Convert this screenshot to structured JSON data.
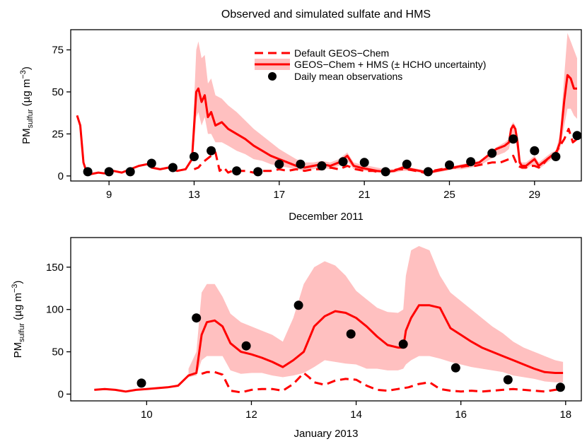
{
  "chart_data": [
    {
      "type": "line",
      "title": "Observed and simulated sulfate and HMS",
      "xlabel": "December 2011",
      "ylabel_main": "PM",
      "ylabel_sub": "sulfur",
      "ylabel_unit_pre": " (µg m",
      "ylabel_unit_sup": "−3",
      "ylabel_unit_post": ")",
      "xlim": [
        7.2,
        31.2
      ],
      "ylim": [
        -3,
        87
      ],
      "xticks": [
        {
          "v": 9,
          "label": "9"
        },
        {
          "v": 13,
          "label": "13"
        },
        {
          "v": 17,
          "label": "17"
        },
        {
          "v": 21,
          "label": "21"
        },
        {
          "v": 25,
          "label": "25"
        },
        {
          "v": 29,
          "label": "29"
        }
      ],
      "yticks": [
        {
          "v": 0,
          "label": "0"
        },
        {
          "v": 25,
          "label": "25"
        },
        {
          "v": 50,
          "label": "50"
        },
        {
          "v": 75,
          "label": "75"
        }
      ],
      "legend": {
        "position": "top-center",
        "entries": [
          "Default GEOS−Chem",
          "GEOS−Chem + HMS (± HCHO uncertainty)",
          "Daily mean observations"
        ]
      },
      "colors": {
        "model": "#ff0000",
        "band": "#ffc0c0",
        "obs": "#000000"
      },
      "series": [
        {
          "name": "GEOS−Chem + HMS (± HCHO uncertainty)",
          "style": "solid",
          "x": [
            7.5,
            7.65,
            7.8,
            7.95,
            8.1,
            8.5,
            8.8,
            9.2,
            9.6,
            10.0,
            10.4,
            10.8,
            11.0,
            11.4,
            11.8,
            12.2,
            12.6,
            12.9,
            13.0,
            13.1,
            13.2,
            13.35,
            13.5,
            13.65,
            13.8,
            14.0,
            14.3,
            14.6,
            15.0,
            15.4,
            15.8,
            16.2,
            16.6,
            17.0,
            17.4,
            17.8,
            18.2,
            18.6,
            19.0,
            19.4,
            19.8,
            20.0,
            20.2,
            20.5,
            20.8,
            21.2,
            21.6,
            22.0,
            22.4,
            22.8,
            23.2,
            23.6,
            24.0,
            24.4,
            24.8,
            25.2,
            25.6,
            26.0,
            26.4,
            26.8,
            27.2,
            27.6,
            27.8,
            27.9,
            28.0,
            28.1,
            28.2,
            28.3,
            28.4,
            28.6,
            28.8,
            29.0,
            29.2,
            29.4,
            29.6,
            29.8,
            30.0,
            30.2,
            30.4,
            30.55,
            30.7,
            30.85,
            31.0
          ],
          "y": [
            36,
            30,
            8,
            2,
            1,
            2,
            1.5,
            3,
            2,
            4,
            6,
            7,
            5,
            4,
            5,
            3,
            4,
            10,
            30,
            50,
            52,
            44,
            48,
            35,
            38,
            30,
            32,
            28,
            25,
            22,
            18,
            15,
            12,
            10,
            8,
            6,
            5,
            6,
            7,
            6,
            8,
            10,
            12,
            6,
            5,
            4,
            3,
            2.5,
            3,
            5,
            4,
            3,
            2,
            3,
            4,
            5,
            6,
            7,
            8,
            12,
            16,
            18,
            20,
            28,
            30,
            28,
            20,
            8,
            6,
            6,
            8,
            10,
            6,
            8,
            10,
            12,
            13,
            20,
            45,
            60,
            58,
            52,
            52
          ]
        },
        {
          "name": "Default GEOS−Chem",
          "style": "dashed",
          "x": [
            13.0,
            13.2,
            13.4,
            13.6,
            13.8,
            14.0,
            14.2,
            14.4,
            14.6,
            14.8,
            15.0,
            15.4,
            15.8,
            16.2,
            16.6,
            17.0,
            17.4,
            17.8,
            18.2,
            18.6,
            19.0,
            19.4,
            19.8,
            20.2,
            20.6,
            21.0,
            21.4,
            21.8,
            22.2,
            22.6,
            23.0,
            23.4,
            23.8,
            24.2,
            24.6,
            25.0,
            25.4,
            25.8,
            26.2,
            26.6,
            27.0,
            27.4,
            27.8,
            28.0,
            28.2,
            28.4,
            28.6,
            28.8,
            29.0,
            29.2,
            29.4,
            29.6,
            29.8,
            30.0,
            30.2,
            30.4,
            30.6,
            30.8,
            31.0
          ],
          "y": [
            4,
            5,
            8,
            10,
            12,
            14,
            3,
            5,
            2,
            3,
            3,
            3,
            2,
            3,
            3,
            4,
            3,
            4,
            3,
            4,
            4,
            5,
            4,
            6,
            4,
            3,
            3,
            2,
            3,
            4,
            4,
            3,
            2,
            3,
            4,
            5,
            5,
            6,
            6,
            7,
            8,
            8,
            10,
            12,
            6,
            5,
            5,
            6,
            6,
            5,
            7,
            10,
            12,
            14,
            18,
            22,
            28,
            20,
            22
          ]
        }
      ],
      "band": {
        "x": [
          12.9,
          13.0,
          13.1,
          13.2,
          13.35,
          13.5,
          13.65,
          13.8,
          14.0,
          14.3,
          14.6,
          15.0,
          15.4,
          15.8,
          16.2,
          16.6,
          17.0,
          17.4,
          17.8,
          18.2,
          18.6,
          19.0,
          19.4,
          19.8,
          20.0,
          20.2,
          20.5,
          20.8,
          21.2,
          21.6,
          22.0,
          22.4,
          22.8,
          23.2,
          23.6,
          24.0,
          24.4,
          24.8,
          25.2,
          25.6,
          26.0,
          26.4,
          26.8,
          27.2,
          27.6,
          27.8,
          27.9,
          28.0,
          28.1,
          28.2,
          28.3,
          28.4,
          28.6,
          28.8,
          29.0,
          29.2,
          29.4,
          29.6,
          29.8,
          30.0,
          30.2,
          30.4,
          30.55,
          30.7,
          30.85,
          31.0
        ],
        "upper": [
          12,
          45,
          75,
          80,
          70,
          72,
          55,
          58,
          48,
          46,
          42,
          38,
          33,
          28,
          24,
          20,
          16,
          13,
          10,
          8,
          8,
          9,
          8,
          10,
          12,
          14,
          8,
          7,
          6,
          5,
          4,
          4,
          6,
          5,
          4,
          3,
          4,
          5,
          6,
          7,
          8,
          9,
          13,
          17,
          20,
          22,
          30,
          32,
          30,
          22,
          10,
          8,
          8,
          10,
          12,
          8,
          10,
          12,
          14,
          15,
          25,
          60,
          85,
          80,
          75,
          70
        ],
        "lower": [
          8,
          20,
          35,
          38,
          30,
          35,
          25,
          25,
          20,
          20,
          18,
          15,
          13,
          10,
          9,
          7,
          6,
          5,
          4,
          3,
          4,
          5,
          4,
          6,
          7,
          9,
          4,
          3,
          3,
          2,
          2,
          2,
          3,
          3,
          2,
          1,
          2,
          3,
          4,
          4,
          5,
          6,
          9,
          12,
          14,
          16,
          22,
          24,
          22,
          14,
          6,
          4,
          4,
          6,
          7,
          4,
          6,
          8,
          10,
          11,
          16,
          30,
          40,
          40,
          36,
          34
        ]
      },
      "observations": {
        "x": [
          8,
          9,
          10,
          11,
          12,
          13,
          13.8,
          15,
          16,
          17,
          18,
          19,
          20,
          21,
          22,
          23,
          24,
          25,
          26,
          27,
          28,
          29,
          30,
          31
        ],
        "y": [
          2.5,
          2.5,
          2.5,
          7.5,
          5,
          11.5,
          15,
          3,
          2.5,
          7,
          7,
          6,
          8.5,
          8,
          2.5,
          7,
          2.5,
          6.5,
          8.5,
          13.5,
          22,
          15,
          11.5,
          24
        ]
      }
    },
    {
      "type": "line",
      "xlabel": "January 2013",
      "ylabel_main": "PM",
      "ylabel_sub": "sulfur",
      "ylabel_unit_pre": " (µg m",
      "ylabel_unit_sup": "−3",
      "ylabel_unit_post": ")",
      "xlim": [
        8.55,
        18.3
      ],
      "ylim": [
        -8,
        185
      ],
      "xticks": [
        {
          "v": 10,
          "label": "10"
        },
        {
          "v": 12,
          "label": "12"
        },
        {
          "v": 14,
          "label": "14"
        },
        {
          "v": 16,
          "label": "16"
        },
        {
          "v": 18,
          "label": "18"
        }
      ],
      "yticks": [
        {
          "v": 0,
          "label": "0"
        },
        {
          "v": 50,
          "label": "50"
        },
        {
          "v": 100,
          "label": "100"
        },
        {
          "v": 150,
          "label": "150"
        }
      ],
      "colors": {
        "model": "#ff0000",
        "band": "#ffc0c0",
        "obs": "#000000"
      },
      "series": [
        {
          "name": "GEOS−Chem + HMS (± HCHO uncertainty)",
          "style": "solid",
          "x": [
            9.0,
            9.2,
            9.4,
            9.6,
            9.8,
            10.0,
            10.2,
            10.4,
            10.6,
            10.8,
            10.95,
            11.05,
            11.15,
            11.3,
            11.45,
            11.6,
            11.8,
            12.0,
            12.2,
            12.4,
            12.6,
            12.8,
            13.0,
            13.2,
            13.4,
            13.6,
            13.8,
            14.0,
            14.2,
            14.4,
            14.6,
            14.8,
            14.9,
            14.95,
            15.05,
            15.2,
            15.4,
            15.6,
            15.8,
            16.0,
            16.2,
            16.4,
            16.6,
            16.8,
            17.0,
            17.2,
            17.4,
            17.6,
            17.8,
            17.95
          ],
          "y": [
            5,
            6,
            5,
            3,
            5,
            6,
            7,
            8,
            10,
            22,
            25,
            70,
            85,
            87,
            80,
            60,
            50,
            47,
            43,
            38,
            32,
            40,
            50,
            80,
            92,
            98,
            96,
            90,
            80,
            68,
            58,
            55,
            55,
            75,
            90,
            105,
            105,
            102,
            78,
            70,
            62,
            55,
            50,
            45,
            40,
            35,
            30,
            26,
            25,
            25
          ]
        },
        {
          "name": "Default GEOS−Chem",
          "style": "dashed",
          "x": [
            11.05,
            11.15,
            11.3,
            11.45,
            11.6,
            11.8,
            12.0,
            12.2,
            12.4,
            12.6,
            12.8,
            13.0,
            13.1,
            13.2,
            13.4,
            13.6,
            13.8,
            14.0,
            14.2,
            14.4,
            14.6,
            14.8,
            15.0,
            15.2,
            15.4,
            15.6,
            15.8,
            16.0,
            16.2,
            16.4,
            16.6,
            16.8,
            17.0,
            17.2,
            17.4,
            17.6,
            17.8,
            17.95
          ],
          "y": [
            24,
            26,
            26,
            23,
            4,
            2,
            5,
            6,
            6,
            4,
            12,
            25,
            20,
            14,
            11,
            16,
            18,
            17,
            10,
            5,
            4,
            6,
            8,
            12,
            14,
            6,
            4,
            3,
            4,
            3,
            4,
            5,
            6,
            5,
            4,
            3,
            5,
            6
          ]
        }
      ],
      "band": {
        "x": [
          10.8,
          10.95,
          11.05,
          11.15,
          11.3,
          11.45,
          11.6,
          11.8,
          12.0,
          12.2,
          12.4,
          12.6,
          12.8,
          13.0,
          13.2,
          13.4,
          13.6,
          13.8,
          14.0,
          14.2,
          14.4,
          14.6,
          14.8,
          14.9,
          14.95,
          15.05,
          15.2,
          15.4,
          15.6,
          15.8,
          16.0,
          16.2,
          16.4,
          16.6,
          16.8,
          17.0,
          17.2,
          17.4,
          17.6,
          17.8,
          17.95
        ],
        "upper": [
          30,
          50,
          120,
          130,
          130,
          115,
          95,
          85,
          80,
          75,
          70,
          62,
          90,
          130,
          150,
          157,
          152,
          140,
          122,
          112,
          102,
          97,
          96,
          100,
          140,
          170,
          175,
          170,
          140,
          120,
          110,
          100,
          90,
          80,
          72,
          62,
          55,
          50,
          45,
          40,
          38
        ],
        "lower": [
          20,
          22,
          40,
          45,
          45,
          45,
          28,
          24,
          25,
          25,
          22,
          20,
          22,
          25,
          32,
          40,
          38,
          36,
          35,
          30,
          30,
          28,
          28,
          30,
          35,
          40,
          45,
          45,
          42,
          38,
          35,
          32,
          30,
          28,
          26,
          22,
          20,
          18,
          15,
          14,
          14
        ]
      },
      "observations": {
        "x": [
          9.9,
          10.95,
          11.9,
          12.9,
          13.9,
          14.9,
          15.9,
          16.9,
          17.9
        ],
        "y": [
          13,
          90,
          57,
          105,
          71,
          59,
          31,
          17,
          8
        ]
      }
    }
  ]
}
